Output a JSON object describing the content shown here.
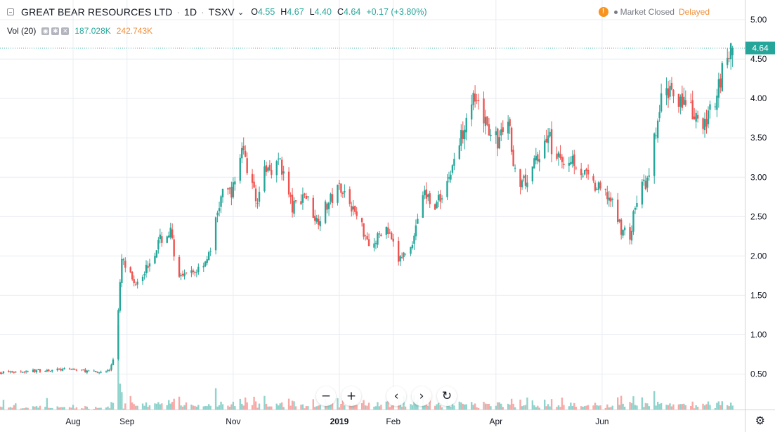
{
  "header": {
    "symbol": "GREAT BEAR RESOURCES LTD",
    "interval": "1D",
    "exchange": "TSXV",
    "open_label": "O",
    "open": "4.55",
    "high_label": "H",
    "high": "4.67",
    "low_label": "L",
    "low": "4.40",
    "close_label": "C",
    "close": "4.64",
    "change": "+0.17 (+3.80%)",
    "market_status": "Market Closed",
    "delay": "Delayed",
    "warning_glyph": "!"
  },
  "volume": {
    "label": "Vol (20)",
    "value1": "187.028K",
    "value2": "242.743K"
  },
  "controls": {
    "zoom_out": "−",
    "zoom_in": "+",
    "scroll_left": "‹",
    "scroll_right": "›",
    "reset": "↻",
    "settings": "⚙"
  },
  "colors": {
    "up": "#26a69a",
    "down": "#ef5350",
    "up_volume": "#8fd3cc",
    "down_volume": "#f7a9a7",
    "grid": "#e9ecf2",
    "price_label": "#26a69a"
  },
  "chart_data": {
    "type": "candlestick",
    "ylim": [
      0.05,
      5.25
    ],
    "y_ticks": [
      "5.00",
      "4.50",
      "4.00",
      "3.50",
      "3.00",
      "2.50",
      "2.00",
      "1.50",
      "1.00",
      "0.50"
    ],
    "y_tick_values": [
      5.0,
      4.5,
      4.0,
      3.5,
      3.0,
      2.5,
      2.0,
      1.5,
      1.0,
      0.5
    ],
    "x_ticks": [
      "Aug",
      "Sep",
      "Nov",
      "2019",
      "Feb",
      "Apr",
      "Jun"
    ],
    "x_tick_dates": [
      "2018-08-01",
      "2018-09-01",
      "2018-11-01",
      "2019-01-01",
      "2019-02-01",
      "2019-04-01",
      "2019-06-01"
    ],
    "last_price": "4.64",
    "last_price_value": 4.64,
    "grid": true,
    "close_series": [
      [
        "2018-06-20",
        0.52
      ],
      [
        "2018-07-01",
        0.53
      ],
      [
        "2018-07-15",
        0.55
      ],
      [
        "2018-08-01",
        0.56
      ],
      [
        "2018-08-15",
        0.52
      ],
      [
        "2018-08-22",
        0.55
      ],
      [
        "2018-08-24",
        0.7
      ],
      [
        "2018-08-27",
        1.3
      ],
      [
        "2018-08-29",
        1.95
      ],
      [
        "2018-09-05",
        1.65
      ],
      [
        "2018-09-12",
        1.85
      ],
      [
        "2018-09-20",
        2.2
      ],
      [
        "2018-09-26",
        2.3
      ],
      [
        "2018-10-01",
        1.7
      ],
      [
        "2018-10-10",
        1.8
      ],
      [
        "2018-10-18",
        2.0
      ],
      [
        "2018-10-25",
        2.75
      ],
      [
        "2018-11-01",
        2.85
      ],
      [
        "2018-11-06",
        3.4
      ],
      [
        "2018-11-14",
        2.7
      ],
      [
        "2018-11-20",
        3.1
      ],
      [
        "2018-11-28",
        3.2
      ],
      [
        "2018-12-05",
        2.6
      ],
      [
        "2018-12-12",
        2.8
      ],
      [
        "2018-12-19",
        2.45
      ],
      [
        "2019-01-02",
        2.9
      ],
      [
        "2019-01-10",
        2.55
      ],
      [
        "2019-01-20",
        2.1
      ],
      [
        "2019-01-27",
        2.4
      ],
      [
        "2019-02-04",
        1.95
      ],
      [
        "2019-02-11",
        2.1
      ],
      [
        "2019-02-18",
        2.8
      ],
      [
        "2019-02-26",
        2.65
      ],
      [
        "2019-03-05",
        3.0
      ],
      [
        "2019-03-12",
        3.5
      ],
      [
        "2019-03-17",
        4.05
      ],
      [
        "2019-03-24",
        3.75
      ],
      [
        "2019-04-02",
        3.45
      ],
      [
        "2019-04-08",
        3.7
      ],
      [
        "2019-04-14",
        2.8
      ],
      [
        "2019-04-22",
        3.1
      ],
      [
        "2019-05-01",
        3.55
      ],
      [
        "2019-05-06",
        3.2
      ],
      [
        "2019-05-15",
        3.25
      ],
      [
        "2019-05-26",
        2.9
      ],
      [
        "2019-06-05",
        2.75
      ],
      [
        "2019-06-12",
        2.35
      ],
      [
        "2019-06-17",
        2.25
      ],
      [
        "2019-06-22",
        2.85
      ],
      [
        "2019-06-28",
        2.95
      ],
      [
        "2019-07-01",
        3.45
      ],
      [
        "2019-07-05",
        3.95
      ],
      [
        "2019-07-10",
        4.15
      ],
      [
        "2019-07-20",
        3.9
      ],
      [
        "2019-07-28",
        3.6
      ],
      [
        "2019-08-03",
        3.85
      ],
      [
        "2019-08-10",
        4.45
      ],
      [
        "2019-08-15",
        4.64
      ]
    ]
  }
}
